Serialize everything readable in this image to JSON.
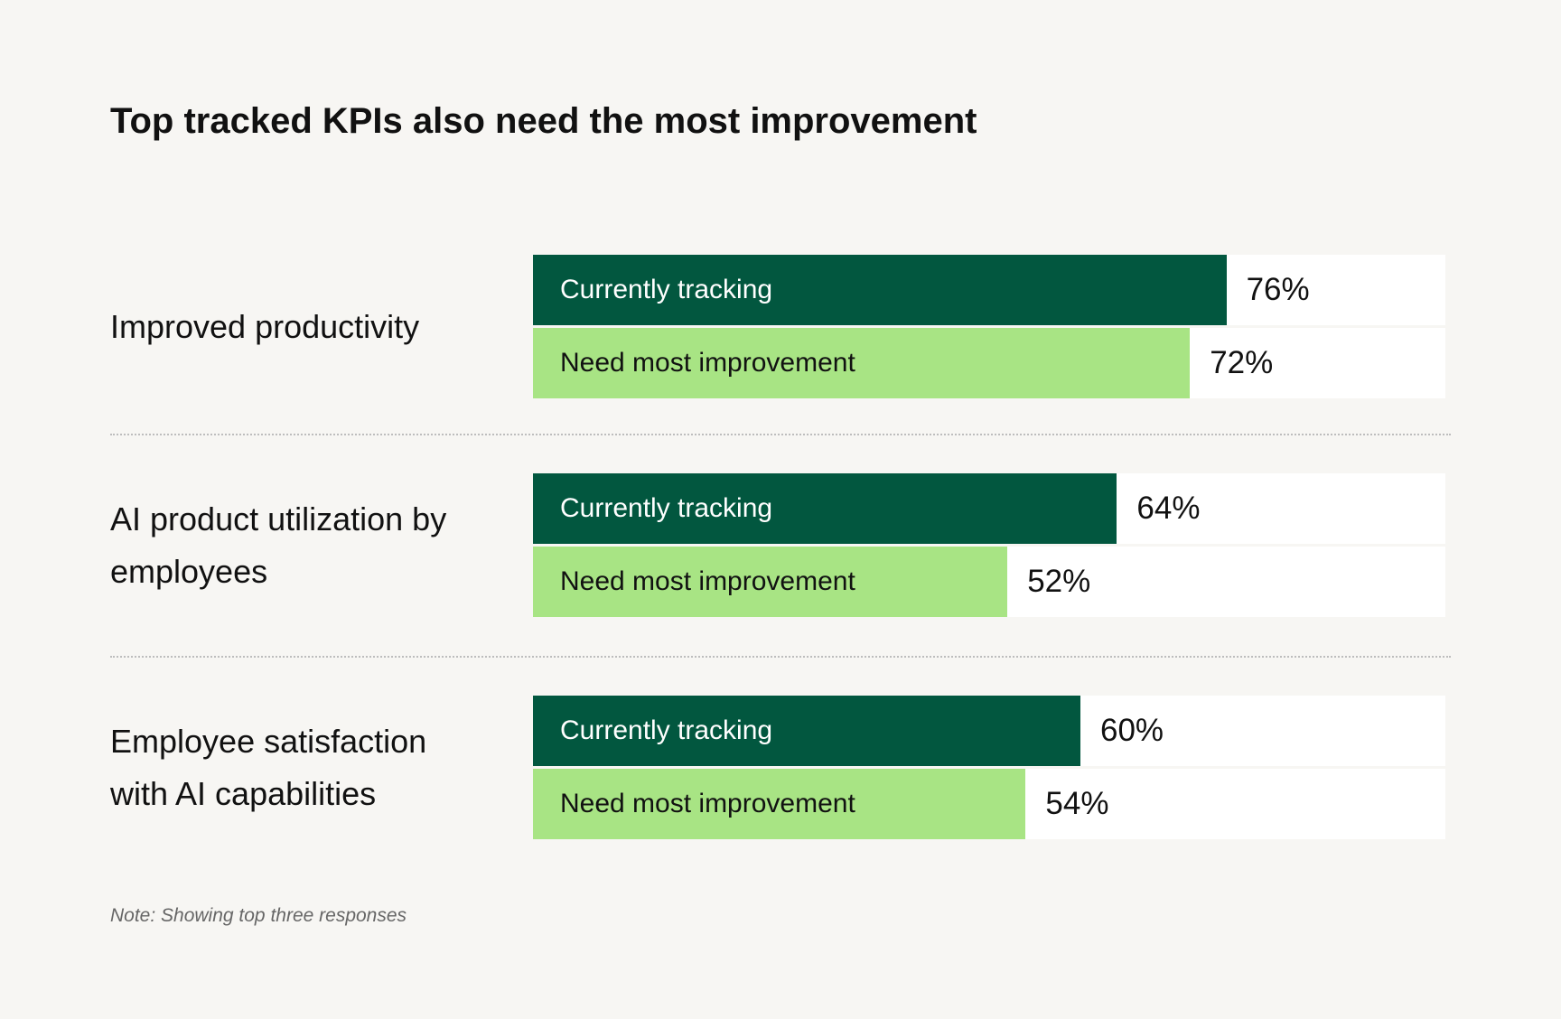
{
  "chart_data": {
    "type": "bar",
    "orientation": "horizontal",
    "title": "Top tracked KPIs also need the most improvement",
    "categories": [
      "Improved productivity",
      "AI product utilization by employees",
      "Employee satisfaction with AI capabilities"
    ],
    "series": [
      {
        "name": "Currently tracking",
        "color": "#02573f",
        "values": [
          76,
          64,
          60
        ],
        "value_labels": [
          "76%",
          "64%",
          "60%"
        ]
      },
      {
        "name": "Need most improvement",
        "color": "#a8e484",
        "values": [
          72,
          52,
          54
        ],
        "value_labels": [
          "72%",
          "52%",
          "54%"
        ]
      }
    ],
    "xlim": [
      0,
      100
    ],
    "note": "Note: Showing top three responses"
  }
}
